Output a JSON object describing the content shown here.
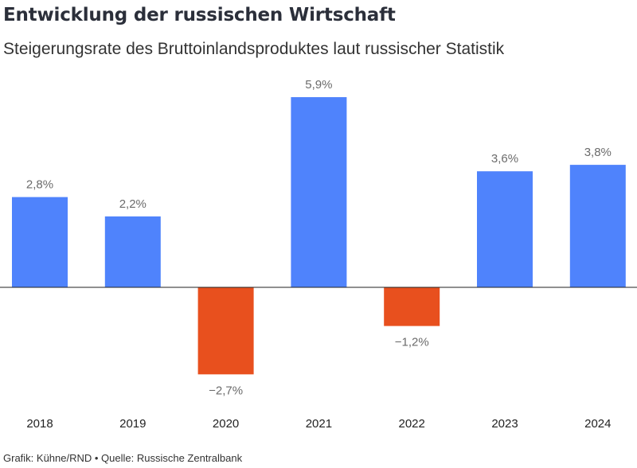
{
  "chart_data": {
    "type": "bar",
    "title": "Entwicklung der russischen Wirtschaft",
    "subtitle": "Steigerungsrate des Bruttoinlandsproduktes laut russischer Statistik",
    "categories": [
      "2018",
      "2019",
      "2020",
      "2021",
      "2022",
      "2023",
      "2024"
    ],
    "values": [
      2.8,
      2.2,
      -2.7,
      5.9,
      -1.2,
      3.6,
      3.8
    ],
    "value_labels": [
      "2,8%",
      "2,2%",
      "−2,7%",
      "5,9%",
      "−1,2%",
      "3,6%",
      "3,8%"
    ],
    "xlabel": "",
    "ylabel": "",
    "ylim": [
      -3,
      6
    ],
    "grid": false,
    "colors": {
      "positive": "#4f83fc",
      "negative": "#e8501e",
      "axis": "#222222"
    }
  },
  "footer": "Grafik: Kühne/RND • Quelle: Russische Zentralbank"
}
